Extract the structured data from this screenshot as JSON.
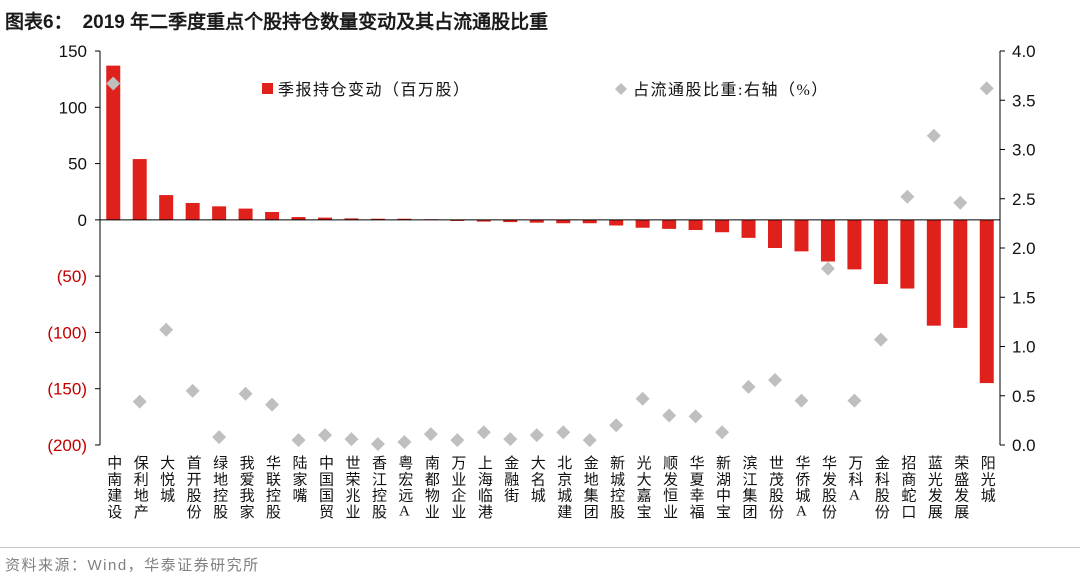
{
  "figure_label": "图表6：",
  "title": "2019 年二季度重点个股持仓数量变动及其占流通股比重",
  "source": "资料来源：Wind，华泰证券研究所",
  "colors": {
    "bar": "#e0201b",
    "marker": "#bfbfbf",
    "negative_tick": "#c00000",
    "axis": "#000000"
  },
  "chart_data": {
    "type": "bar",
    "categories": [
      "中南建设",
      "保利地产",
      "大悦城",
      "首开股份",
      "绿地控股",
      "我爱我家",
      "华联控股",
      "陆家嘴",
      "中国国贸",
      "世荣兆业",
      "香江控股",
      "粤宏远A",
      "南都物业",
      "万业企业",
      "上海临港",
      "金融街",
      "大名城",
      "北京城建",
      "金地集团",
      "新城控股",
      "光大嘉宝",
      "顺发恒业",
      "华夏幸福",
      "新湖中宝",
      "滨江集团",
      "世茂股份",
      "华侨城A",
      "华发股份",
      "万科A",
      "金科股份",
      "招商蛇口",
      "蓝光发展",
      "荣盛发展",
      "阳光城"
    ],
    "series": [
      {
        "name": "季报持仓变动（百万股）",
        "type": "bar",
        "axis": "left",
        "values": [
          137,
          54,
          22,
          15,
          12,
          10,
          7,
          2.5,
          2,
          1.3,
          1,
          1,
          0.5,
          -1,
          -1.5,
          -2,
          -2.5,
          -3,
          -3,
          -5,
          -7,
          -8,
          -9,
          -11,
          -16,
          -25,
          -28,
          -37,
          -44,
          -57,
          -61,
          -94,
          -96,
          -145
        ]
      },
      {
        "name": "占流通股比重:右轴（%）",
        "type": "scatter",
        "marker": "diamond",
        "axis": "right",
        "values": [
          3.67,
          0.44,
          1.17,
          0.55,
          0.08,
          0.52,
          0.41,
          0.05,
          0.1,
          0.06,
          0.01,
          0.03,
          0.11,
          0.05,
          0.13,
          0.06,
          0.1,
          0.13,
          0.05,
          0.2,
          0.47,
          0.3,
          0.29,
          0.13,
          0.59,
          0.66,
          0.45,
          1.79,
          0.45,
          1.07,
          2.52,
          3.14,
          2.46,
          3.62
        ]
      }
    ],
    "y_left": {
      "ylim": [
        -200,
        150
      ],
      "tick_values": [
        150,
        100,
        50,
        0,
        -50,
        -100,
        -150,
        -200
      ],
      "tick_labels": [
        "150",
        "100",
        "50",
        "0",
        "(50)",
        "(100)",
        "(150)",
        "(200)"
      ]
    },
    "y_right": {
      "ylim": [
        0,
        4.0
      ],
      "tick_values": [
        4.0,
        3.5,
        3.0,
        2.5,
        2.0,
        1.5,
        1.0,
        0.5,
        0.0
      ],
      "tick_labels": [
        "4.0",
        "3.5",
        "3.0",
        "2.5",
        "2.0",
        "1.5",
        "1.0",
        "0.5",
        "0.0"
      ]
    },
    "legend": {
      "position": "top"
    },
    "grid": false
  }
}
